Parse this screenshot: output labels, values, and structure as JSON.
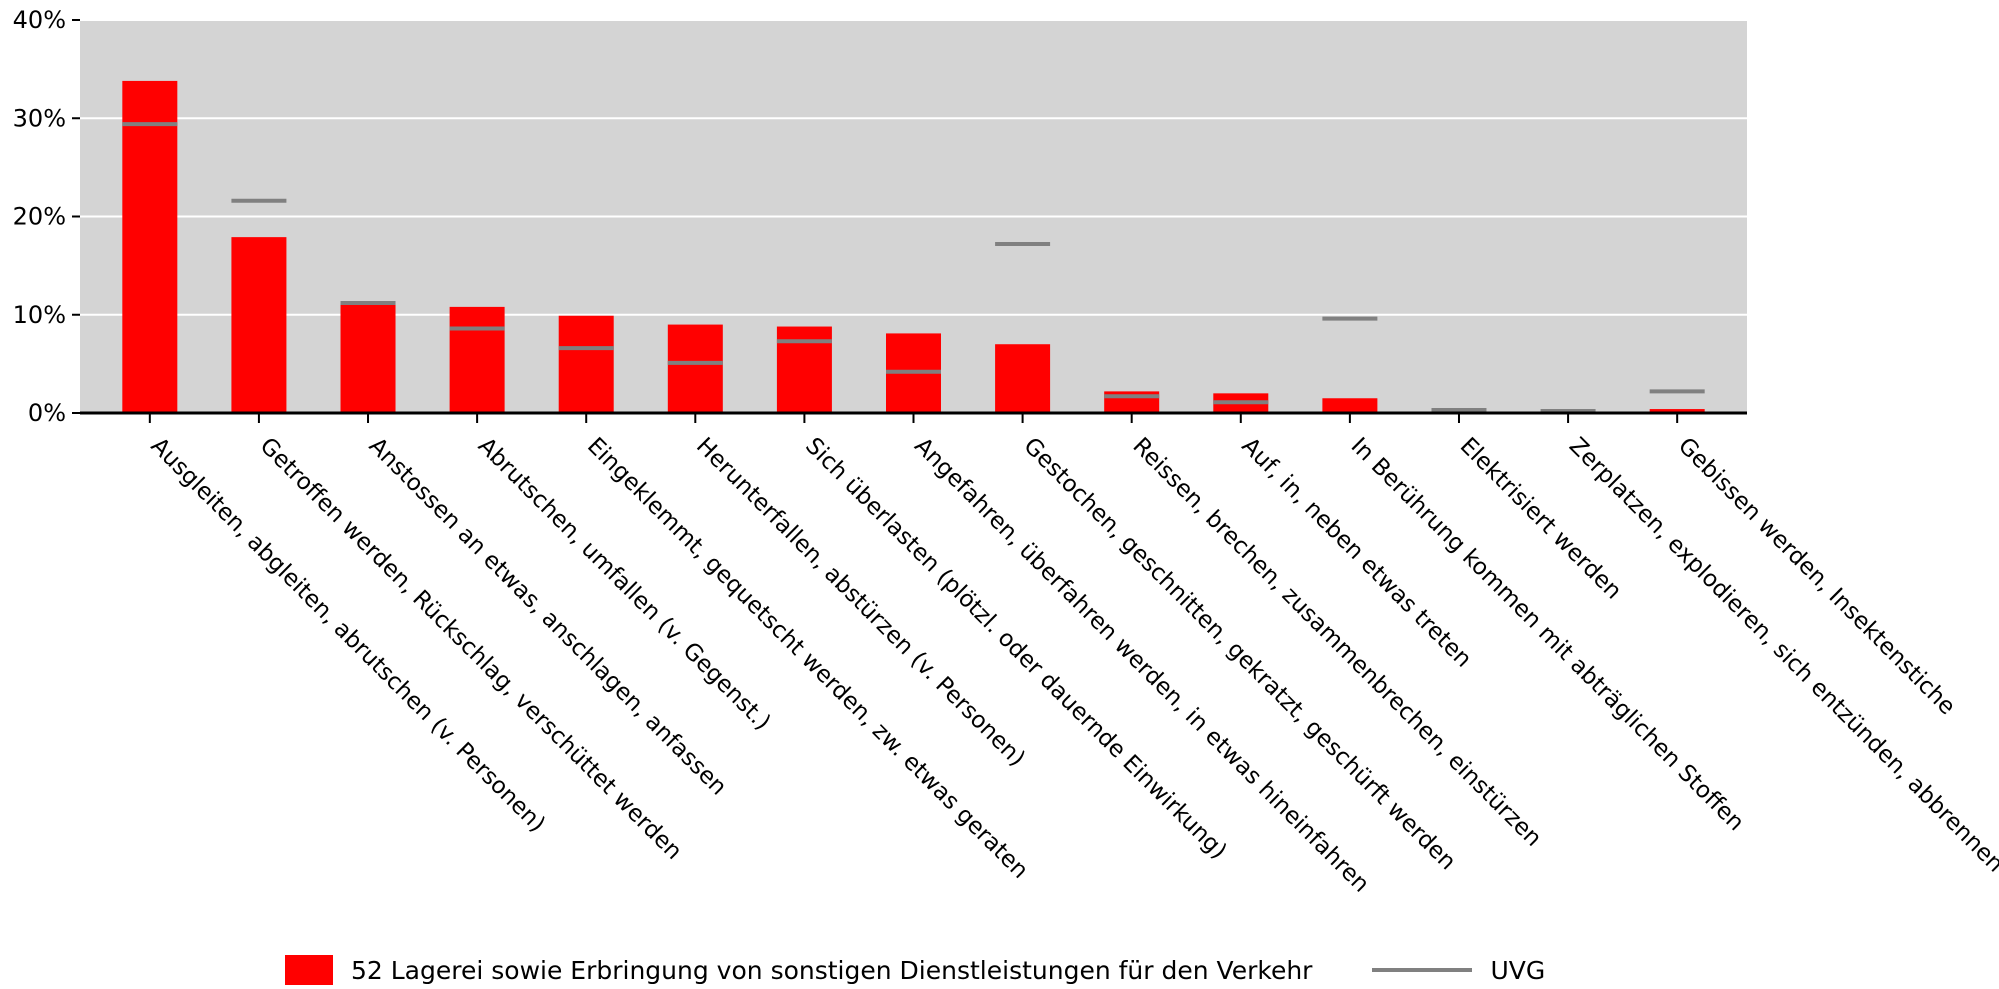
{
  "chart_data": {
    "type": "bar",
    "title": "",
    "xlabel": "",
    "ylabel": "",
    "ylim": [
      0,
      40
    ],
    "y_ticks": [
      "0%",
      "10%",
      "20%",
      "30%",
      "40%"
    ],
    "grid": true,
    "legend_position": "bottom",
    "categories": [
      "Ausgleiten, abgleiten, abrutschen (v. Personen)",
      "Getroffen werden, Rückschlag, verschüttet werden",
      "Anstossen an etwas, anschlagen, anfassen",
      "Abrutschen, umfallen (v. Gegenst.)",
      "Eingeklemmt, gequetscht werden, zw. etwas geraten",
      "Herunterfallen, abstürzen (v. Personen)",
      "Sich überlasten (plötzl. oder dauernde Einwirkung)",
      "Angefahren, überfahren werden, in etwas hineinfahren",
      "Gestochen, geschnitten, gekratzt, geschürft werden",
      "Reissen, brechen, zusammenbrechen, einstürzen",
      "Auf, in, neben etwas treten",
      "In Berührung kommen mit abträglichen Stoffen",
      "Elektrisiert werden",
      "Zerplatzen, explodieren, sich entzünden, abbrennen",
      "Gebissen werden, Insektenstiche"
    ],
    "series": [
      {
        "name": "52 Lagerei sowie Erbringung von sonstigen Dienstleistungen für den Verkehr",
        "kind": "bar",
        "color": "#ff0000",
        "values": [
          33.8,
          17.9,
          11.2,
          10.8,
          9.9,
          9.0,
          8.8,
          8.1,
          7.0,
          2.2,
          2.0,
          1.5,
          0.0,
          0.0,
          0.4
        ]
      },
      {
        "name": "UVG",
        "kind": "marker-line",
        "color": "#808080",
        "values": [
          29.4,
          21.6,
          11.2,
          8.6,
          6.6,
          5.1,
          7.3,
          4.2,
          17.2,
          1.7,
          1.1,
          9.6,
          0.3,
          0.2,
          2.2
        ]
      }
    ],
    "colors": {
      "plot_background": "#d4d4d4",
      "gridline": "#ffffff",
      "axis": "#000000"
    }
  }
}
